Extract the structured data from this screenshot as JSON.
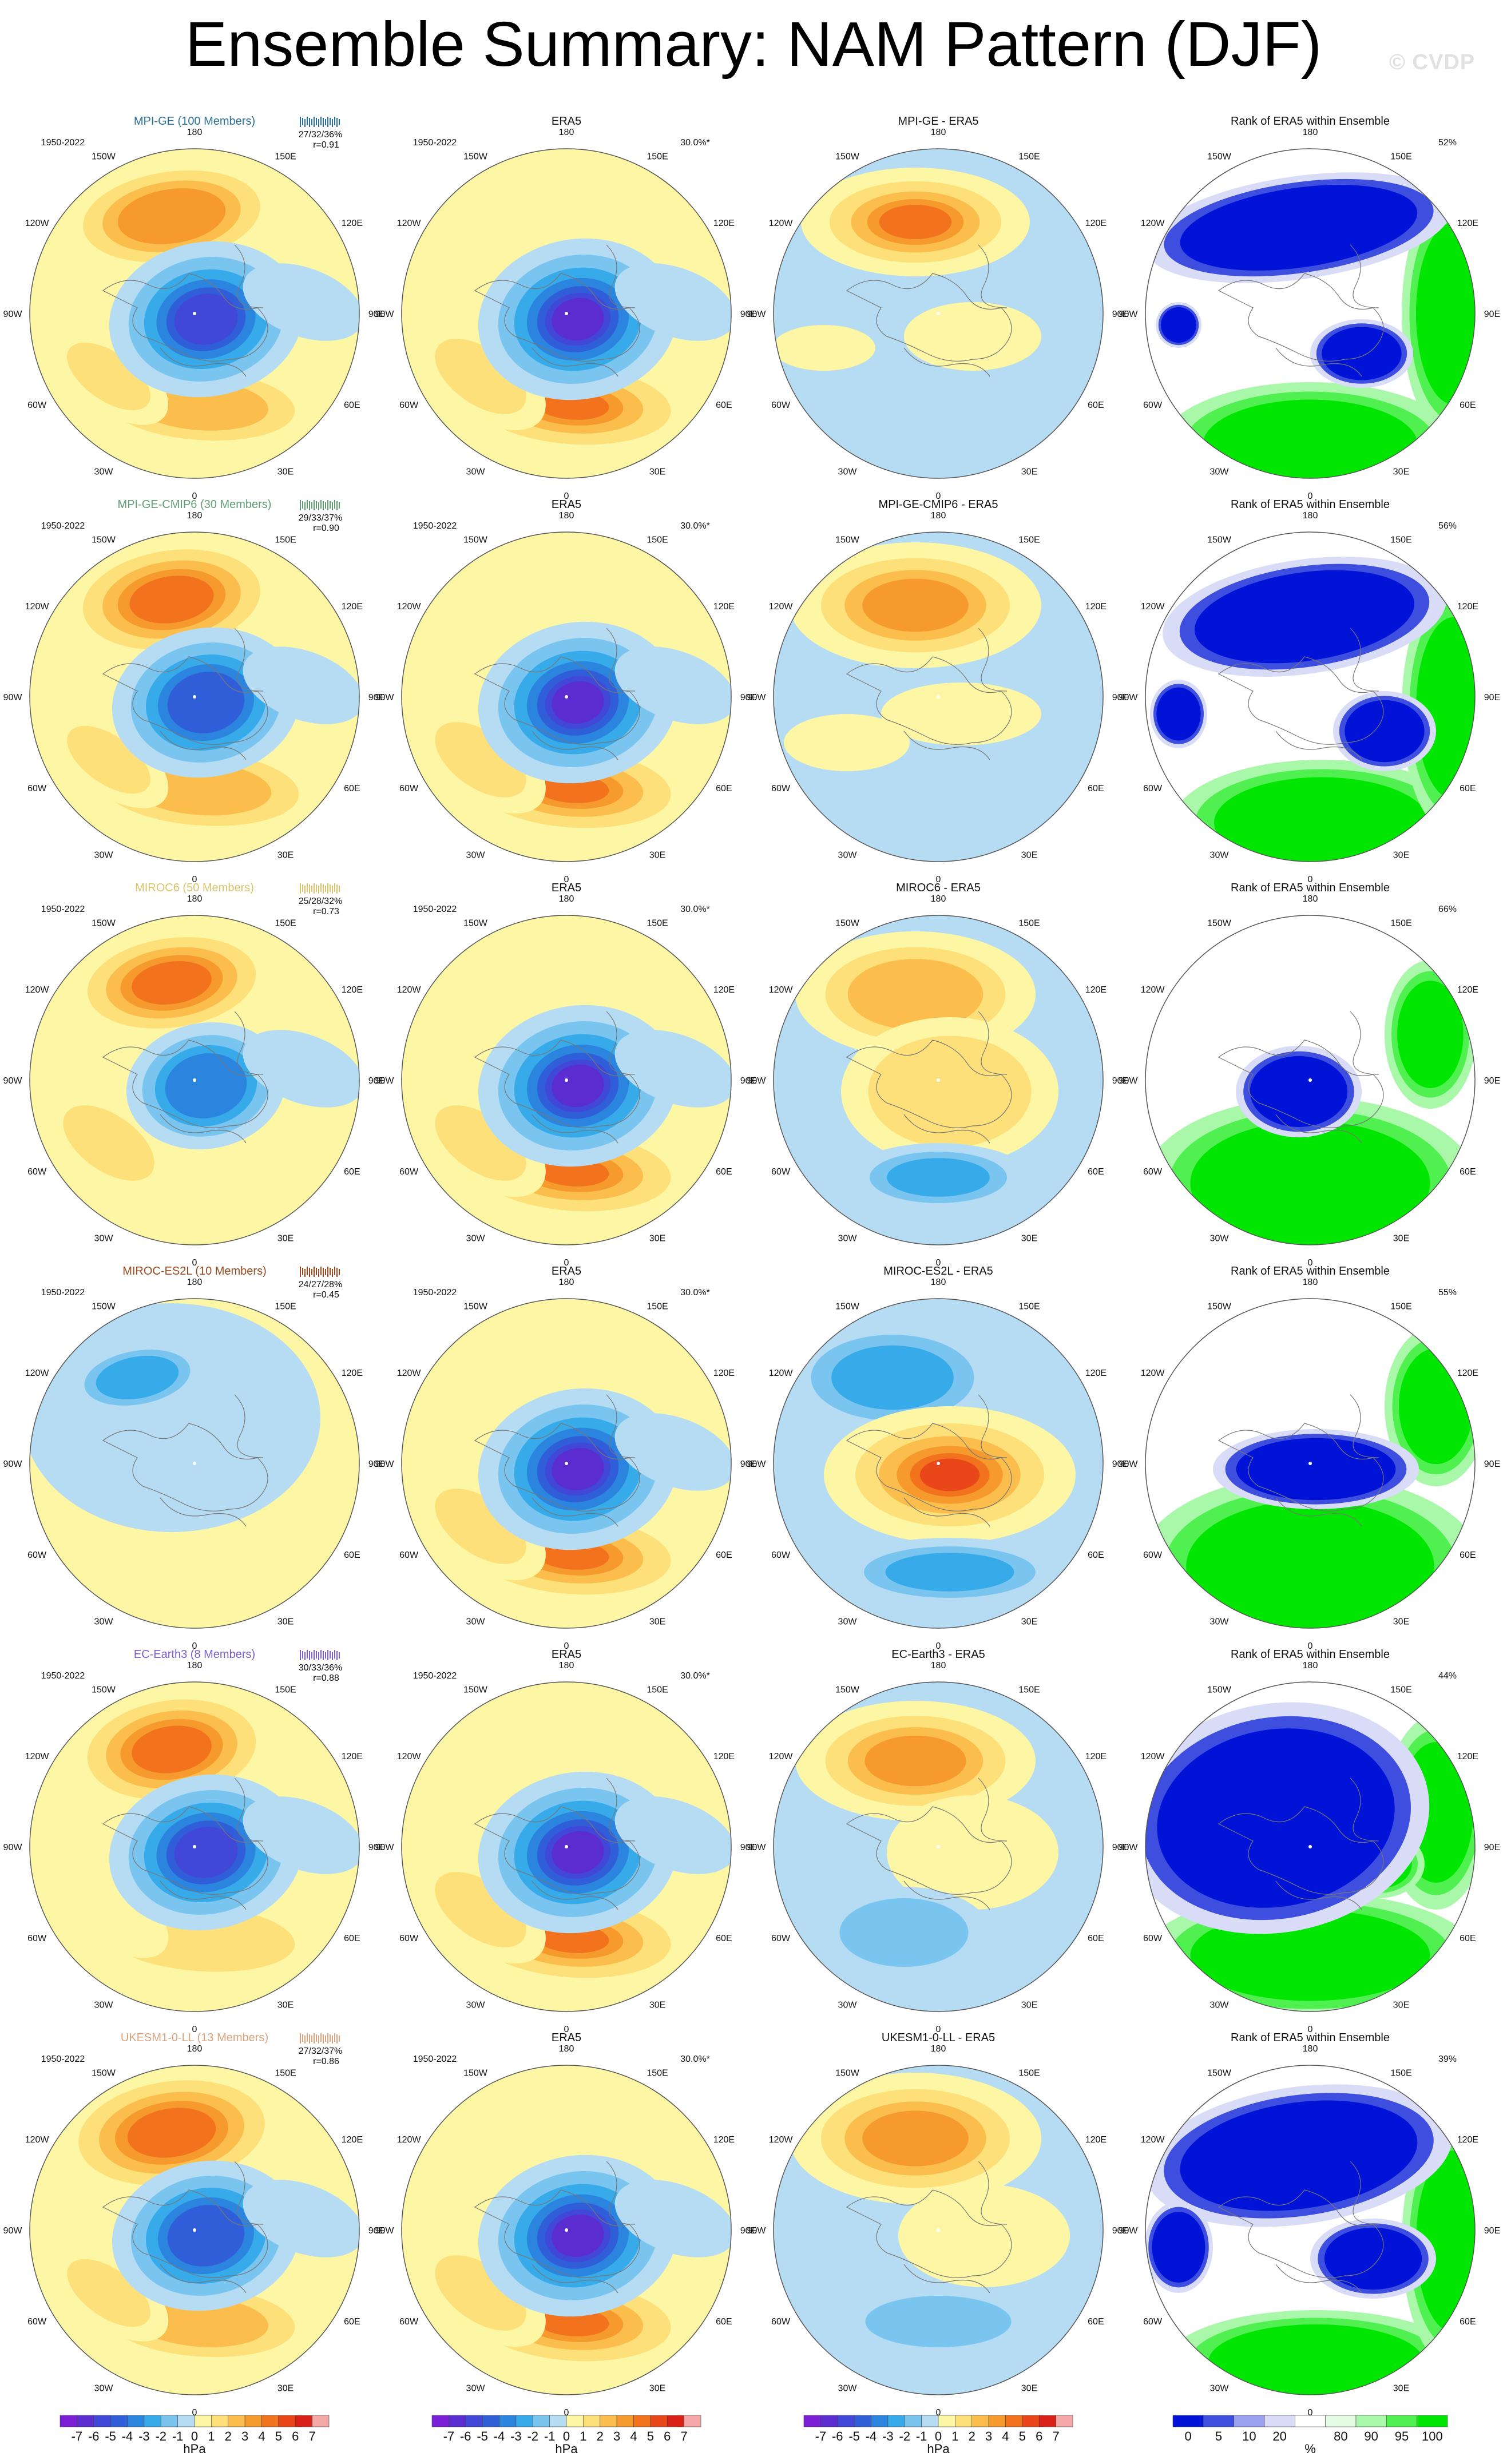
{
  "header": {
    "title": "Ensemble Summary: NAM Pattern (DJF)",
    "watermark": "© CVDP"
  },
  "labels": {
    "period": "1950-2022",
    "obs_pct": "30.0%*",
    "obs_title": "ERA5",
    "rank_title": "Rank of ERA5 within Ensemble",
    "lon_labels": [
      "180",
      "150E",
      "120E",
      "90E",
      "60E",
      "30E",
      "0",
      "30W",
      "60W",
      "90W",
      "120W",
      "150W"
    ]
  },
  "colors": {
    "pos": [
      "#fdf6a4",
      "#fde07a",
      "#fbbe4d",
      "#f79a2e",
      "#f2721e",
      "#e9471a",
      "#d92118",
      "#f4a9a7"
    ],
    "neg": [
      "#b6dcf3",
      "#79c5f0",
      "#37aaea",
      "#2b84de",
      "#2f5ed8",
      "#4147d6",
      "#5b2ccf",
      "#7a1fd5"
    ],
    "rank": [
      "#0013d6",
      "#3e4fe0",
      "#9aa2ef",
      "#d9dcf7",
      "#ffffff",
      "#e3fae3",
      "#a9f7a9",
      "#4ff04f",
      "#00e600"
    ]
  },
  "models": [
    {
      "name": "MPI-GE (100 Members)",
      "color": "#2a6f97",
      "stats": "27/32/36%",
      "r": "r=0.91",
      "diff": "MPI-GE - ERA5",
      "rank_pct": "52%"
    },
    {
      "name": "MPI-GE-CMIP6 (30 Members)",
      "color": "#5f9c73",
      "stats": "29/33/37%",
      "r": "r=0.90",
      "diff": "MPI-GE-CMIP6 - ERA5",
      "rank_pct": "56%"
    },
    {
      "name": "MIROC6 (50 Members)",
      "color": "#d8c46a",
      "stats": "25/28/32%",
      "r": "r=0.73",
      "diff": "MIROC6 - ERA5",
      "rank_pct": "66%"
    },
    {
      "name": "MIROC-ES2L (10 Members)",
      "color": "#9a4a1f",
      "stats": "24/27/28%",
      "r": "r=0.45",
      "diff": "MIROC-ES2L - ERA5",
      "rank_pct": "55%"
    },
    {
      "name": "EC-Earth3 (8 Members)",
      "color": "#7b5cc9",
      "stats": "30/33/36%",
      "r": "r=0.88",
      "diff": "EC-Earth3 - ERA5",
      "rank_pct": "44%"
    },
    {
      "name": "UKESM1-0-LL (13 Members)",
      "color": "#d9a27c",
      "stats": "27/32/37%",
      "r": "r=0.86",
      "diff": "UKESM1-0-LL - ERA5",
      "rank_pct": "39%"
    }
  ],
  "colorbars": {
    "hpa_ticks": [
      "-7",
      "-6",
      "-5",
      "-4",
      "-3",
      "-2",
      "-1",
      "0",
      "1",
      "2",
      "3",
      "4",
      "5",
      "6",
      "7"
    ],
    "hpa_unit": "hPa",
    "rank_ticks": [
      "0",
      "5",
      "10",
      "20",
      "80",
      "90",
      "95",
      "100"
    ],
    "rank_unit": "%"
  }
}
